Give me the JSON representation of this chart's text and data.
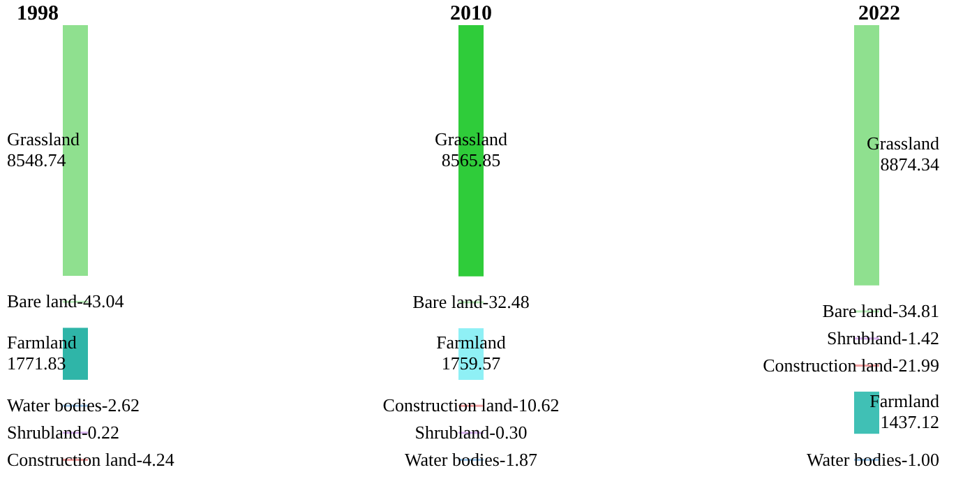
{
  "chart_data": [
    {
      "type": "other",
      "title": "1998",
      "categories": [
        "Grassland",
        "Bare land-",
        "Farmland",
        "Water bodies-",
        "Shrubland-",
        "Construction land-"
      ],
      "values": [
        8548.74,
        43.04,
        1771.83,
        2.62,
        0.22,
        4.24
      ],
      "value_labels": [
        "8548.74",
        "43.04",
        "1771.83",
        "2.62",
        "0.22",
        "4.24"
      ],
      "colors": [
        "#8fe08f",
        "#b9ecb9",
        "#2fb5a8",
        "#9ec8ec",
        "#d9b3f0",
        "#f0a0a0"
      ]
    },
    {
      "type": "other",
      "title": "2010",
      "categories": [
        "Grassland",
        "Bare land-",
        "Farmland",
        "Construction land-",
        "Shrubland-",
        "Water bodies-"
      ],
      "values": [
        8565.85,
        32.48,
        1759.57,
        10.62,
        0.3,
        1.87
      ],
      "value_labels": [
        "8565.85",
        "32.48",
        "1759.57",
        "10.62",
        "0.30",
        "1.87"
      ],
      "colors": [
        "#2fcc3a",
        "#b9ecb9",
        "#8ff0f5",
        "#f0a0a0",
        "#d9b3f0",
        "#9ec8ec"
      ]
    },
    {
      "type": "other",
      "title": "2022",
      "categories": [
        "Grassland",
        "Bare land-",
        "Shrubland-",
        "Construction land-",
        "Farmland",
        "Water bodies-"
      ],
      "values": [
        8874.34,
        34.81,
        1.42,
        21.99,
        1437.12,
        1.0
      ],
      "value_labels": [
        "8874.34",
        "34.81",
        "1.42",
        "21.99",
        "1437.12",
        "1.00"
      ],
      "colors": [
        "#8fe08f",
        "#b9ecb9",
        "#d9b3f0",
        "#f0a0a0",
        "#40c0b5",
        "#9ec8ec"
      ]
    }
  ]
}
